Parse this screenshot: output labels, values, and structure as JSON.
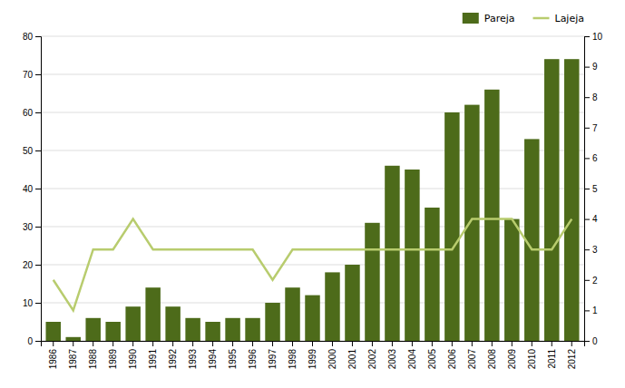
{
  "chart_data": {
    "type": "bar",
    "categories": [
      "1986",
      "1987",
      "1988",
      "1989",
      "1990",
      "1991",
      "1992",
      "1993",
      "1994",
      "1995",
      "1996",
      "1997",
      "1998",
      "1999",
      "2000",
      "2001",
      "2002",
      "2003",
      "2004",
      "2005",
      "2006",
      "2007",
      "2008",
      "2009",
      "2010",
      "2011",
      "2012"
    ],
    "series": [
      {
        "name": "Pareja",
        "type": "bar",
        "color": "#4d6b1a",
        "values": [
          5,
          1,
          6,
          5,
          9,
          14,
          9,
          6,
          5,
          6,
          6,
          10,
          14,
          12,
          18,
          20,
          31,
          46,
          45,
          35,
          60,
          62,
          66,
          32,
          53,
          74,
          74
        ]
      },
      {
        "name": "Lajeja",
        "type": "line",
        "axis": "y2",
        "color": "#b8cc6e",
        "values": [
          2.0,
          1.0,
          3.0,
          3.0,
          4.0,
          3.0,
          3.0,
          3.0,
          3.0,
          3.0,
          3.0,
          2.0,
          3.0,
          3.0,
          3.0,
          3.0,
          3.0,
          3.0,
          3.0,
          3.0,
          3.0,
          4.0,
          4.0,
          4.0,
          3.0,
          3.0,
          4.0
        ]
      }
    ],
    "ylim": [
      0,
      80
    ],
    "yticks": [
      0,
      10,
      20,
      30,
      40,
      50,
      60,
      70,
      80
    ],
    "y2lim": [
      0,
      10
    ],
    "y2ticks": [
      0,
      1,
      2,
      3,
      4,
      5,
      6,
      7,
      8,
      9,
      10
    ],
    "grid": true,
    "legend": "upper right"
  }
}
